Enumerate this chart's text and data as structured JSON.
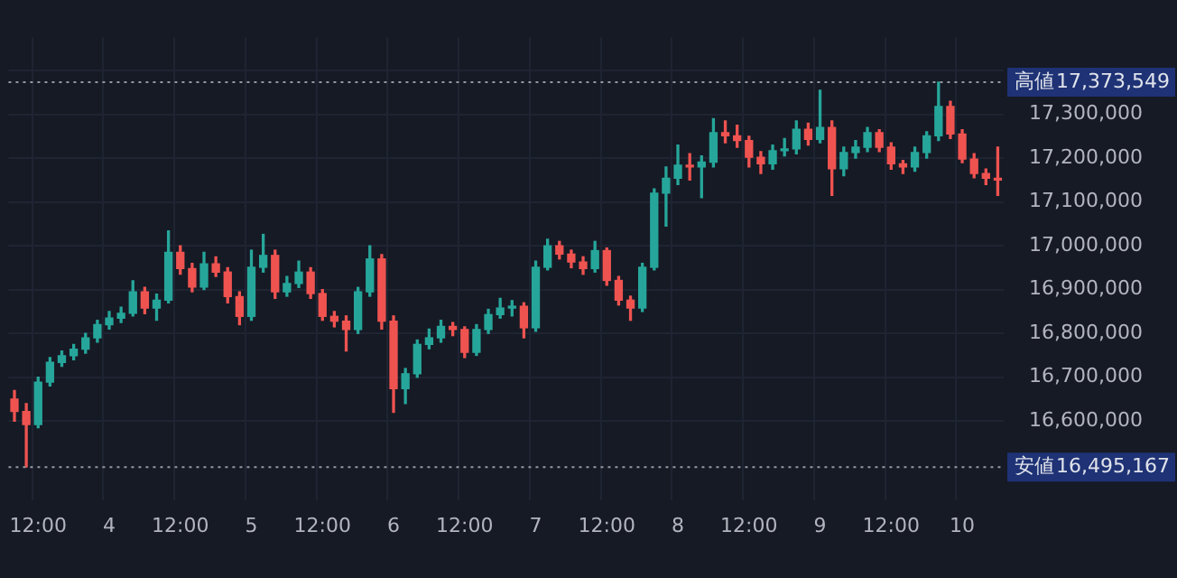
{
  "chart_data": {
    "type": "candlestick",
    "categories": [
      null,
      null,
      "12:00",
      null,
      null,
      null,
      null,
      null,
      "4",
      null,
      null,
      null,
      null,
      null,
      "12:00",
      null,
      null,
      null,
      null,
      null,
      "5",
      null,
      null,
      null,
      null,
      null,
      "12:00",
      null,
      null,
      null,
      null,
      null,
      "6",
      null,
      null,
      null,
      null,
      null,
      "12:00",
      null,
      null,
      null,
      null,
      null,
      "7",
      null,
      null,
      null,
      null,
      null,
      "12:00",
      null,
      null,
      null,
      null,
      null,
      "8",
      null,
      null,
      null,
      null,
      null,
      "12:00",
      null,
      null,
      null,
      null,
      null,
      "9",
      null,
      null,
      null,
      null,
      null,
      "12:00",
      null,
      null,
      null,
      null,
      null,
      "10",
      null,
      null,
      null
    ],
    "ohlc": [
      [
        16650000,
        16670000,
        16600000,
        16622000
      ],
      [
        16622000,
        16640000,
        16495167,
        16592000
      ],
      [
        16592000,
        16700000,
        16585000,
        16689000
      ],
      [
        16689000,
        16745000,
        16680000,
        16734000
      ],
      [
        16734000,
        16760000,
        16725000,
        16749000
      ],
      [
        16749000,
        16775000,
        16740000,
        16764000
      ],
      [
        16764000,
        16800000,
        16755000,
        16790000
      ],
      [
        16790000,
        16830000,
        16780000,
        16820000
      ],
      [
        16820000,
        16850000,
        16810000,
        16835000
      ],
      [
        16835000,
        16860000,
        16825000,
        16846000
      ],
      [
        16846000,
        16920000,
        16840000,
        16895000
      ],
      [
        16895000,
        16905000,
        16845000,
        16858000
      ],
      [
        16858000,
        16890000,
        16830000,
        16876000
      ],
      [
        16876000,
        17034000,
        16870000,
        16985000
      ],
      [
        16985000,
        17000000,
        16935000,
        16948000
      ],
      [
        16948000,
        16960000,
        16895000,
        16906000
      ],
      [
        16906000,
        16985000,
        16900000,
        16959000
      ],
      [
        16959000,
        16975000,
        16930000,
        16940000
      ],
      [
        16940000,
        16950000,
        16870000,
        16884000
      ],
      [
        16884000,
        16895000,
        16820000,
        16839000
      ],
      [
        16839000,
        16990000,
        16830000,
        16951000
      ],
      [
        16951000,
        17026000,
        16940000,
        16978000
      ],
      [
        16978000,
        16990000,
        16880000,
        16895000
      ],
      [
        16895000,
        16930000,
        16885000,
        16914000
      ],
      [
        16914000,
        16965000,
        16905000,
        16940000
      ],
      [
        16940000,
        16950000,
        16880000,
        16891000
      ],
      [
        16891000,
        16900000,
        16830000,
        16839000
      ],
      [
        16839000,
        16850000,
        16815000,
        16828000
      ],
      [
        16828000,
        16840000,
        16760000,
        16809000
      ],
      [
        16809000,
        16905000,
        16800000,
        16895000
      ],
      [
        16895000,
        17000000,
        16885000,
        16970000
      ],
      [
        16970000,
        16980000,
        16810000,
        16828000
      ],
      [
        16828000,
        16840000,
        16620000,
        16674000
      ],
      [
        16674000,
        16720000,
        16640000,
        16708000
      ],
      [
        16708000,
        16785000,
        16700000,
        16775000
      ],
      [
        16775000,
        16810000,
        16765000,
        16790000
      ],
      [
        16790000,
        16830000,
        16780000,
        16816000
      ],
      [
        16816000,
        16825000,
        16795000,
        16809000
      ],
      [
        16809000,
        16815000,
        16745000,
        16757000
      ],
      [
        16757000,
        16820000,
        16750000,
        16809000
      ],
      [
        16809000,
        16855000,
        16800000,
        16843000
      ],
      [
        16843000,
        16880000,
        16835000,
        16858000
      ],
      [
        16858000,
        16875000,
        16840000,
        16862000
      ],
      [
        16862000,
        16870000,
        16790000,
        16813000
      ],
      [
        16813000,
        16965000,
        16805000,
        16951000
      ],
      [
        16951000,
        17015000,
        16945000,
        17000000
      ],
      [
        17000000,
        17010000,
        16970000,
        16981000
      ],
      [
        16981000,
        16990000,
        16950000,
        16963000
      ],
      [
        16963000,
        16975000,
        16935000,
        16948000
      ],
      [
        16948000,
        17010000,
        16940000,
        16989000
      ],
      [
        16989000,
        16995000,
        16910000,
        16921000
      ],
      [
        16921000,
        16930000,
        16865000,
        16876000
      ],
      [
        16876000,
        16885000,
        16830000,
        16858000
      ],
      [
        16858000,
        16960000,
        16850000,
        16951000
      ],
      [
        16951000,
        17130000,
        16945000,
        17120000
      ],
      [
        17120000,
        17180000,
        17045000,
        17154000
      ],
      [
        17154000,
        17230000,
        17140000,
        17184000
      ],
      [
        17184000,
        17210000,
        17150000,
        17180000
      ],
      [
        17180000,
        17205000,
        17110000,
        17191000
      ],
      [
        17191000,
        17290000,
        17180000,
        17258000
      ],
      [
        17258000,
        17285000,
        17235000,
        17251000
      ],
      [
        17251000,
        17275000,
        17225000,
        17240000
      ],
      [
        17240000,
        17250000,
        17180000,
        17202000
      ],
      [
        17202000,
        17215000,
        17165000,
        17187000
      ],
      [
        17187000,
        17230000,
        17175000,
        17217000
      ],
      [
        17217000,
        17245000,
        17205000,
        17221000
      ],
      [
        17221000,
        17285000,
        17210000,
        17266000
      ],
      [
        17266000,
        17280000,
        17230000,
        17243000
      ],
      [
        17243000,
        17355000,
        17235000,
        17270000
      ],
      [
        17270000,
        17285000,
        17115000,
        17176000
      ],
      [
        17176000,
        17225000,
        17160000,
        17213000
      ],
      [
        17213000,
        17240000,
        17200000,
        17225000
      ],
      [
        17225000,
        17270000,
        17215000,
        17258000
      ],
      [
        17258000,
        17265000,
        17215000,
        17225000
      ],
      [
        17225000,
        17235000,
        17175000,
        17187000
      ],
      [
        17187000,
        17195000,
        17165000,
        17180000
      ],
      [
        17180000,
        17225000,
        17170000,
        17213000
      ],
      [
        17213000,
        17260000,
        17200000,
        17251000
      ],
      [
        17251000,
        17373549,
        17240000,
        17318000
      ],
      [
        17318000,
        17330000,
        17245000,
        17255000
      ],
      [
        17255000,
        17265000,
        17190000,
        17198000
      ],
      [
        17198000,
        17210000,
        17155000,
        17165000
      ],
      [
        17165000,
        17175000,
        17140000,
        17154000
      ],
      [
        17154000,
        17225000,
        17115000,
        17150000
      ]
    ],
    "colors": [
      "#ef5350",
      "#ef5350",
      "#26a69a",
      "#26a69a",
      "#26a69a",
      "#26a69a",
      "#26a69a",
      "#26a69a",
      "#26a69a",
      "#26a69a",
      "#26a69a",
      "#ef5350",
      "#26a69a",
      "#26a69a",
      "#ef5350",
      "#ef5350",
      "#26a69a",
      "#ef5350",
      "#ef5350",
      "#ef5350",
      "#26a69a",
      "#26a69a",
      "#ef5350",
      "#26a69a",
      "#26a69a",
      "#ef5350",
      "#ef5350",
      "#ef5350",
      "#ef5350",
      "#26a69a",
      "#26a69a",
      "#ef5350",
      "#ef5350",
      "#26a69a",
      "#26a69a",
      "#26a69a",
      "#26a69a",
      "#ef5350",
      "#ef5350",
      "#26a69a",
      "#26a69a",
      "#26a69a",
      "#26a69a",
      "#ef5350",
      "#26a69a",
      "#26a69a",
      "#ef5350",
      "#ef5350",
      "#ef5350",
      "#26a69a",
      "#ef5350",
      "#ef5350",
      "#ef5350",
      "#26a69a",
      "#26a69a",
      "#26a69a",
      "#26a69a",
      "#ef5350",
      "#26a69a",
      "#26a69a",
      "#ef5350",
      "#ef5350",
      "#ef5350",
      "#ef5350",
      "#26a69a",
      "#26a69a",
      "#26a69a",
      "#ef5350",
      "#26a69a",
      "#ef5350",
      "#26a69a",
      "#26a69a",
      "#26a69a",
      "#ef5350",
      "#ef5350",
      "#ef5350",
      "#26a69a",
      "#26a69a",
      "#26a69a",
      "#ef5350",
      "#ef5350",
      "#ef5350",
      "#ef5350",
      "#ef5350"
    ],
    "ylim": [
      16420000,
      17476000
    ],
    "yticks": [
      {
        "value": 16600000,
        "label": "16,600,000"
      },
      {
        "value": 16700000,
        "label": "16,700,000"
      },
      {
        "value": 16800000,
        "label": "16,800,000"
      },
      {
        "value": 16900000,
        "label": "16,900,000"
      },
      {
        "value": 17000000,
        "label": "17,000,000"
      },
      {
        "value": 17100000,
        "label": "17,100,000"
      },
      {
        "value": 17200000,
        "label": "17,200,000"
      },
      {
        "value": 17300000,
        "label": "17,300,000"
      },
      {
        "value": 17400000,
        "label": null
      }
    ],
    "annotations": [
      "17,373,549",
      "16,495,167"
    ],
    "grid": true,
    "ref_lines": [
      {
        "axis": "y",
        "value": 17373549,
        "label": "高値",
        "color": "#9598a1",
        "line_style": "dotted"
      },
      {
        "axis": "y",
        "value": 16495167,
        "label": "安値",
        "color": "#9598a1",
        "line_style": "dotted"
      }
    ]
  }
}
